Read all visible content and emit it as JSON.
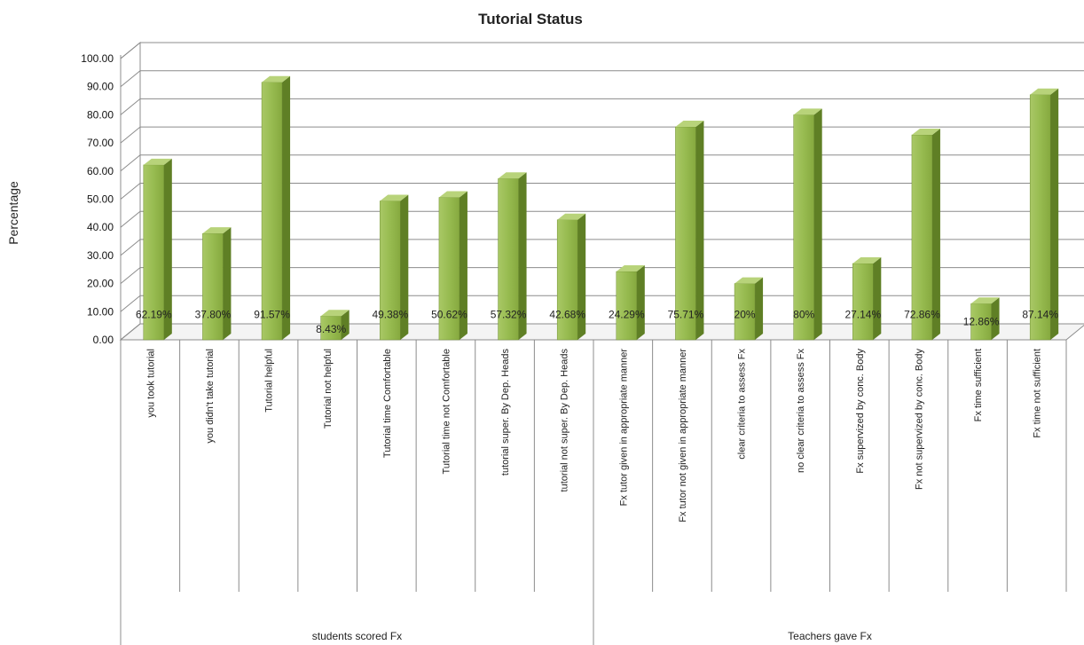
{
  "chart_data": {
    "type": "bar",
    "title": "Tutorial Status",
    "ylabel": "Percentage",
    "xlabel": "",
    "ylim": [
      0,
      100
    ],
    "yticks": [
      "0.00",
      "10.00",
      "20.00",
      "30.00",
      "40.00",
      "50.00",
      "60.00",
      "70.00",
      "80.00",
      "90.00",
      "100.00"
    ],
    "grid": true,
    "legend": "none",
    "categories": [
      "you took tutorial",
      "you didn't take tutorial",
      "Tutorial helpful",
      "Tutorial not helpful",
      "Tutorial time Comfortable",
      "Tutorial time not Comfortable",
      "tutorial super. By Dep. Heads",
      "tutorial not super. By Dep. Heads",
      "Fx tutor given in appropriate manner",
      "Fx tutor not given in appropriate manner",
      "clear criteria to assess Fx",
      "no clear criteria to assess Fx",
      "Fx supervized by conc. Body",
      "Fx not supervized by conc. Body",
      "Fx time sufficient",
      "Fx time not sufficient"
    ],
    "values": [
      62.19,
      37.8,
      91.57,
      8.43,
      49.38,
      50.62,
      57.32,
      42.68,
      24.29,
      75.71,
      20,
      80,
      27.14,
      72.86,
      12.86,
      87.14
    ],
    "data_labels": [
      "62.19%",
      "37.80%",
      "91.57%",
      "8.43%",
      "49.38%",
      "50.62%",
      "57.32%",
      "42.68%",
      "24.29%",
      "75.71%",
      "20%",
      "80%",
      "27.14%",
      "72.86%",
      "12.86%",
      "87.14%"
    ],
    "groups": [
      {
        "label": "students scored Fx",
        "count": 8
      },
      {
        "label": "Teachers gave Fx",
        "count": 8
      }
    ],
    "bar_color": "#8db04a"
  }
}
